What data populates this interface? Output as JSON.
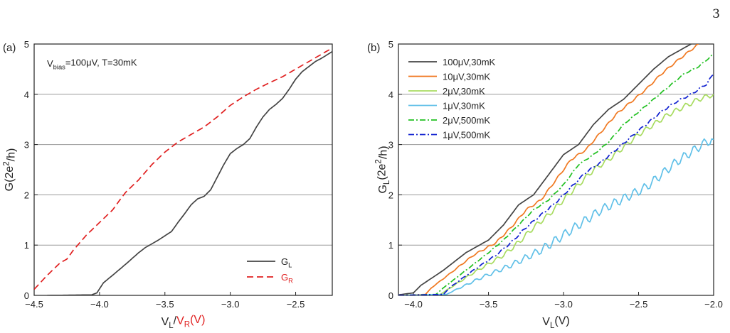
{
  "page_number": "3",
  "chart_data": [
    {
      "panel": "(a)",
      "type": "line",
      "annotation": "V_bias=100μV, T=30mK",
      "xlabel": "V_L/V_R(V)",
      "ylabel": "G(2e^2/h)",
      "xlim": [
        -4.5,
        -2.22
      ],
      "ylim": [
        0,
        5
      ],
      "xticks": [
        -4.5,
        -4.0,
        -3.5,
        -3.0,
        -2.5
      ],
      "xtick_labels": [
        "-4.5",
        "-4.0",
        "-3.5",
        "-3.0",
        "-2.5"
      ],
      "yticks": [
        0,
        1,
        2,
        3,
        4,
        5
      ],
      "ytick_labels": [
        "0",
        "1",
        "2",
        "3",
        "4",
        "5"
      ],
      "grid": "horizontal",
      "legend": "bottom-right",
      "series": [
        {
          "name": "G_L",
          "color": "#444444",
          "dash": "solid",
          "points": [
            [
              -4.4,
              0
            ],
            [
              -4.06,
              0.01
            ],
            [
              -4.02,
              0.05
            ],
            [
              -3.97,
              0.25
            ],
            [
              -3.9,
              0.4
            ],
            [
              -3.8,
              0.62
            ],
            [
              -3.7,
              0.85
            ],
            [
              -3.65,
              0.95
            ],
            [
              -3.55,
              1.1
            ],
            [
              -3.45,
              1.27
            ],
            [
              -3.4,
              1.45
            ],
            [
              -3.35,
              1.62
            ],
            [
              -3.3,
              1.8
            ],
            [
              -3.25,
              1.92
            ],
            [
              -3.2,
              1.97
            ],
            [
              -3.15,
              2.1
            ],
            [
              -3.1,
              2.35
            ],
            [
              -3.05,
              2.6
            ],
            [
              -3.0,
              2.82
            ],
            [
              -2.95,
              2.92
            ],
            [
              -2.9,
              3.0
            ],
            [
              -2.85,
              3.12
            ],
            [
              -2.8,
              3.35
            ],
            [
              -2.75,
              3.55
            ],
            [
              -2.7,
              3.7
            ],
            [
              -2.65,
              3.8
            ],
            [
              -2.6,
              3.92
            ],
            [
              -2.55,
              4.1
            ],
            [
              -2.5,
              4.3
            ],
            [
              -2.45,
              4.45
            ],
            [
              -2.4,
              4.55
            ],
            [
              -2.35,
              4.65
            ],
            [
              -2.3,
              4.72
            ],
            [
              -2.22,
              4.85
            ]
          ]
        },
        {
          "name": "G_R",
          "color": "#e02020",
          "dash": "dashed",
          "points": [
            [
              -4.5,
              0.12
            ],
            [
              -4.4,
              0.4
            ],
            [
              -4.3,
              0.65
            ],
            [
              -4.25,
              0.72
            ],
            [
              -4.2,
              0.9
            ],
            [
              -4.1,
              1.2
            ],
            [
              -4.0,
              1.45
            ],
            [
              -3.9,
              1.7
            ],
            [
              -3.85,
              1.88
            ],
            [
              -3.8,
              2.05
            ],
            [
              -3.7,
              2.3
            ],
            [
              -3.6,
              2.6
            ],
            [
              -3.5,
              2.85
            ],
            [
              -3.4,
              3.05
            ],
            [
              -3.3,
              3.2
            ],
            [
              -3.2,
              3.35
            ],
            [
              -3.1,
              3.55
            ],
            [
              -3.0,
              3.78
            ],
            [
              -2.9,
              3.95
            ],
            [
              -2.8,
              4.1
            ],
            [
              -2.7,
              4.23
            ],
            [
              -2.6,
              4.35
            ],
            [
              -2.5,
              4.5
            ],
            [
              -2.4,
              4.65
            ],
            [
              -2.3,
              4.8
            ],
            [
              -2.22,
              4.92
            ]
          ]
        }
      ]
    },
    {
      "panel": "(b)",
      "type": "line",
      "xlabel": "V_L(V)",
      "ylabel": "G_L(2e^2/h)",
      "xlim": [
        -4.1,
        -2.0
      ],
      "ylim": [
        0,
        5
      ],
      "xticks": [
        -4.0,
        -3.5,
        -3.0,
        -2.5,
        -2.0
      ],
      "xtick_labels": [
        "-4.0",
        "-3.5",
        "-3.0",
        "-2.5",
        "-2.0"
      ],
      "yticks": [
        0,
        1,
        2,
        3,
        4,
        5
      ],
      "ytick_labels": [
        "0",
        "1",
        "2",
        "3",
        "4",
        "5"
      ],
      "grid": "horizontal",
      "legend": "top-left",
      "series": [
        {
          "name": "100μV,30mK",
          "color": "#444444",
          "dash": "solid",
          "ripple": 0.0,
          "points": [
            [
              -4.1,
              0.01
            ],
            [
              -4.0,
              0.05
            ],
            [
              -3.95,
              0.2
            ],
            [
              -3.8,
              0.5
            ],
            [
              -3.65,
              0.85
            ],
            [
              -3.5,
              1.1
            ],
            [
              -3.4,
              1.4
            ],
            [
              -3.3,
              1.8
            ],
            [
              -3.2,
              2.0
            ],
            [
              -3.1,
              2.4
            ],
            [
              -3.0,
              2.8
            ],
            [
              -2.9,
              3.0
            ],
            [
              -2.8,
              3.4
            ],
            [
              -2.7,
              3.7
            ],
            [
              -2.6,
              3.9
            ],
            [
              -2.5,
              4.2
            ],
            [
              -2.4,
              4.5
            ],
            [
              -2.3,
              4.75
            ],
            [
              -2.15,
              5.0
            ]
          ]
        },
        {
          "name": "10μV,30mK",
          "color": "#f07820",
          "dash": "solid",
          "ripple": 0.02,
          "points": [
            [
              -4.1,
              0.0
            ],
            [
              -3.92,
              0.02
            ],
            [
              -3.88,
              0.15
            ],
            [
              -3.75,
              0.45
            ],
            [
              -3.6,
              0.8
            ],
            [
              -3.45,
              1.05
            ],
            [
              -3.35,
              1.35
            ],
            [
              -3.25,
              1.7
            ],
            [
              -3.15,
              1.9
            ],
            [
              -3.05,
              2.3
            ],
            [
              -2.95,
              2.7
            ],
            [
              -2.85,
              2.9
            ],
            [
              -2.75,
              3.25
            ],
            [
              -2.65,
              3.6
            ],
            [
              -2.55,
              3.85
            ],
            [
              -2.45,
              4.1
            ],
            [
              -2.35,
              4.4
            ],
            [
              -2.25,
              4.65
            ],
            [
              -2.1,
              5.0
            ]
          ]
        },
        {
          "name": "2μV,30mK",
          "color": "#a8dc60",
          "dash": "solid",
          "ripple": 0.05,
          "points": [
            [
              -4.1,
              0.0
            ],
            [
              -3.82,
              0.02
            ],
            [
              -3.78,
              0.1
            ],
            [
              -3.6,
              0.45
            ],
            [
              -3.4,
              0.8
            ],
            [
              -3.3,
              1.05
            ],
            [
              -3.2,
              1.35
            ],
            [
              -3.1,
              1.6
            ],
            [
              -3.0,
              1.9
            ],
            [
              -2.9,
              2.2
            ],
            [
              -2.8,
              2.5
            ],
            [
              -2.7,
              2.7
            ],
            [
              -2.6,
              2.95
            ],
            [
              -2.5,
              3.2
            ],
            [
              -2.4,
              3.4
            ],
            [
              -2.3,
              3.6
            ],
            [
              -2.2,
              3.75
            ],
            [
              -2.1,
              3.9
            ],
            [
              -2.0,
              4.0
            ]
          ]
        },
        {
          "name": "1μV,30mK",
          "color": "#60c0e8",
          "dash": "solid",
          "ripple": 0.09,
          "points": [
            [
              -4.1,
              0.0
            ],
            [
              -3.78,
              0.02
            ],
            [
              -3.74,
              0.08
            ],
            [
              -3.55,
              0.35
            ],
            [
              -3.35,
              0.6
            ],
            [
              -3.15,
              0.9
            ],
            [
              -3.05,
              1.1
            ],
            [
              -2.95,
              1.3
            ],
            [
              -2.85,
              1.5
            ],
            [
              -2.75,
              1.7
            ],
            [
              -2.65,
              1.85
            ],
            [
              -2.55,
              2.0
            ],
            [
              -2.45,
              2.15
            ],
            [
              -2.35,
              2.4
            ],
            [
              -2.25,
              2.65
            ],
            [
              -2.15,
              2.85
            ],
            [
              -2.05,
              3.05
            ],
            [
              -2.0,
              3.1
            ]
          ]
        },
        {
          "name": "2μV,500mK",
          "color": "#20c020",
          "dash": "dashdot",
          "ripple": 0.01,
          "points": [
            [
              -4.1,
              0.0
            ],
            [
              -3.85,
              0.02
            ],
            [
              -3.8,
              0.15
            ],
            [
              -3.65,
              0.5
            ],
            [
              -3.5,
              0.85
            ],
            [
              -3.4,
              1.1
            ],
            [
              -3.3,
              1.4
            ],
            [
              -3.2,
              1.7
            ],
            [
              -3.1,
              1.9
            ],
            [
              -3.0,
              2.2
            ],
            [
              -2.9,
              2.6
            ],
            [
              -2.8,
              2.8
            ],
            [
              -2.7,
              3.05
            ],
            [
              -2.6,
              3.4
            ],
            [
              -2.5,
              3.65
            ],
            [
              -2.4,
              3.9
            ],
            [
              -2.3,
              4.15
            ],
            [
              -2.2,
              4.4
            ],
            [
              -2.1,
              4.55
            ],
            [
              -2.0,
              4.8
            ]
          ]
        },
        {
          "name": "1μV,500mK",
          "color": "#1020d0",
          "dash": "dashdot",
          "ripple": 0.02,
          "points": [
            [
              -4.1,
              0.0
            ],
            [
              -3.8,
              0.02
            ],
            [
              -3.76,
              0.15
            ],
            [
              -3.6,
              0.5
            ],
            [
              -3.45,
              0.8
            ],
            [
              -3.35,
              1.05
            ],
            [
              -3.25,
              1.35
            ],
            [
              -3.15,
              1.6
            ],
            [
              -3.05,
              1.85
            ],
            [
              -2.95,
              2.15
            ],
            [
              -2.85,
              2.45
            ],
            [
              -2.75,
              2.65
            ],
            [
              -2.65,
              2.9
            ],
            [
              -2.55,
              3.15
            ],
            [
              -2.45,
              3.4
            ],
            [
              -2.35,
              3.65
            ],
            [
              -2.25,
              3.85
            ],
            [
              -2.15,
              4.0
            ],
            [
              -2.05,
              4.2
            ],
            [
              -2.0,
              4.4
            ]
          ]
        }
      ]
    }
  ]
}
